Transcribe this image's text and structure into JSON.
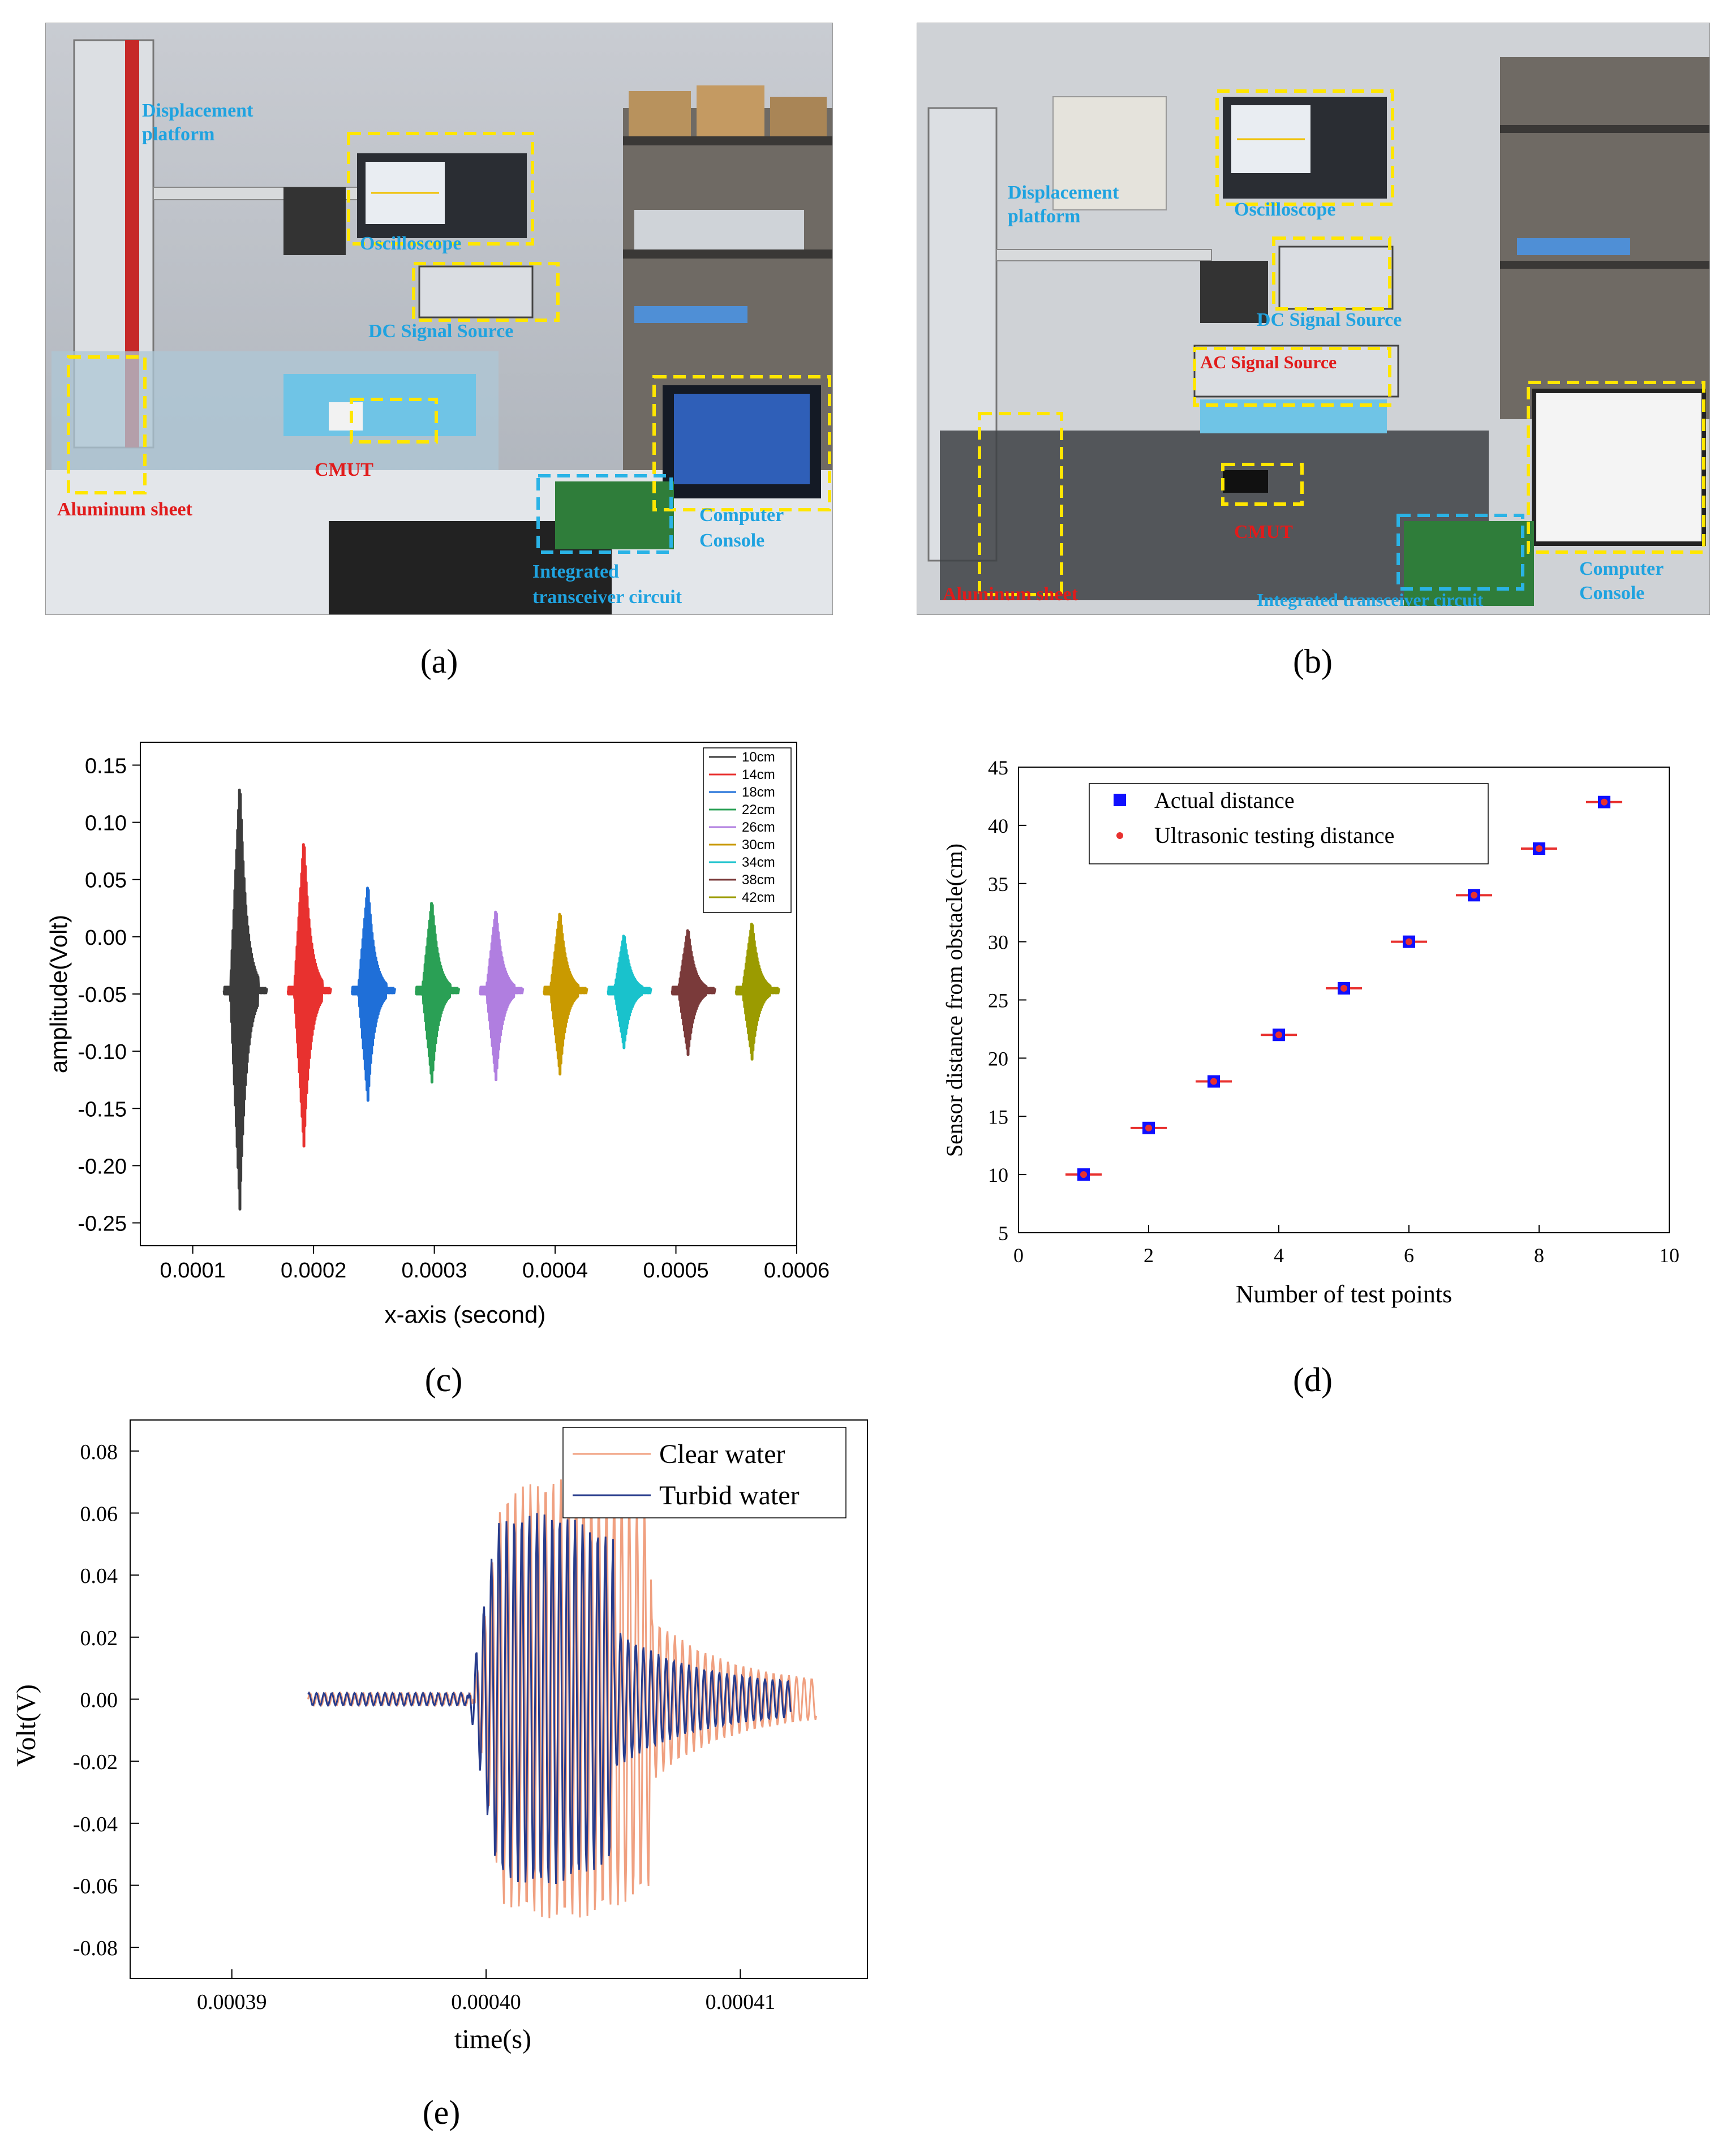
{
  "photo_a": {
    "labels": {
      "displacement": [
        "Displacement",
        "platform"
      ],
      "oscilloscope": "Oscilloscope",
      "dc_source": "DC Signal Source",
      "cmut": "CMUT",
      "aluminum": "Aluminum sheet",
      "computer": [
        "Computer",
        "Console"
      ],
      "transceiver": [
        "Integrated",
        "transceiver circuit"
      ]
    },
    "caption": "(a)"
  },
  "photo_b": {
    "labels": {
      "displacement": [
        "Displacement",
        "platform"
      ],
      "oscilloscope": "Oscilloscope",
      "dc_source": "DC Signal Source",
      "ac_source": "AC Signal Source",
      "cmut": "CMUT",
      "aluminum": "Aluminum sheet",
      "transceiver": "Integrated transceiver circuit",
      "computer": [
        "Computer",
        "Console"
      ]
    },
    "caption": "(b)"
  },
  "colors": {
    "blue_label": "#1fa3e0",
    "red_label": "#e11b1b",
    "yellow_box": "#ffe600",
    "cyan_box": "#2ab3e6",
    "clear_water": "#f0a080",
    "turbid_water": "#283c8c"
  },
  "chart_data": [
    {
      "panel": "c",
      "type": "line",
      "xlabel": "x-axis (second)",
      "ylabel": "amplitude(Volt)",
      "xlim": [
        0.0001,
        0.0006
      ],
      "ylim": [
        -0.27,
        0.17
      ],
      "xticks": [
        "0.0001",
        "0.0002",
        "0.0003",
        "0.0004",
        "0.0005",
        "0.0006"
      ],
      "yticks": [
        "0.15",
        "0.10",
        "0.05",
        "0.00",
        "-0.05",
        "-0.10",
        "-0.15",
        "-0.20",
        "-0.25"
      ],
      "baseline": -0.047,
      "legend_position": "top-right",
      "series": [
        {
          "name": "10cm",
          "center": 0.000137,
          "max": 0.137,
          "min": -0.238,
          "color": "#3c3c3c"
        },
        {
          "name": "14cm",
          "center": 0.00019,
          "max": 0.087,
          "min": -0.183,
          "color": "#e8312f"
        },
        {
          "name": "18cm",
          "center": 0.000243,
          "max": 0.047,
          "min": -0.143,
          "color": "#1f6fd8"
        },
        {
          "name": "22cm",
          "center": 0.000296,
          "max": 0.033,
          "min": -0.127,
          "color": "#2aa055"
        },
        {
          "name": "26cm",
          "center": 0.000349,
          "max": 0.025,
          "min": -0.125,
          "color": "#b07ee0"
        },
        {
          "name": "30cm",
          "center": 0.000402,
          "max": 0.023,
          "min": -0.12,
          "color": "#c99a00"
        },
        {
          "name": "34cm",
          "center": 0.000455,
          "max": 0.003,
          "min": -0.097,
          "color": "#19c2cc"
        },
        {
          "name": "38cm",
          "center": 0.000508,
          "max": 0.008,
          "min": -0.103,
          "color": "#7a3a3a"
        },
        {
          "name": "42cm",
          "center": 0.000561,
          "max": 0.014,
          "min": -0.107,
          "color": "#9b9b00"
        }
      ],
      "caption": "(c)"
    },
    {
      "panel": "d",
      "type": "scatter",
      "xlabel": "Number of test points",
      "ylabel": "Sensor distance from obstacle(cm)",
      "xlim": [
        0,
        10
      ],
      "ylim": [
        5,
        45
      ],
      "xticks": [
        "0",
        "2",
        "4",
        "6",
        "8",
        "10"
      ],
      "yticks": [
        "5",
        "10",
        "15",
        "20",
        "25",
        "30",
        "35",
        "40",
        "45"
      ],
      "legend_position": "top-left",
      "x": [
        1,
        2,
        3,
        4,
        5,
        6,
        7,
        8,
        9
      ],
      "series": [
        {
          "name": "Actual distance",
          "values": [
            10,
            14,
            18,
            22,
            26,
            30,
            34,
            38,
            42
          ],
          "color": "#1010ff",
          "marker": "square"
        },
        {
          "name": "Ultrasonic testing distance",
          "values": [
            10,
            14,
            18,
            22,
            26,
            30,
            34,
            38,
            42
          ],
          "color": "#e8312f",
          "marker": "circle"
        }
      ],
      "caption": "(d)"
    },
    {
      "panel": "e",
      "type": "line",
      "xlabel": "time(s)",
      "ylabel": "Volt(V)",
      "xlim": [
        0.000386,
        0.000415
      ],
      "ylim": [
        -0.09,
        0.09
      ],
      "xticks": [
        "0.00039",
        "0.00040",
        "0.00041"
      ],
      "yticks": [
        "0.08",
        "0.06",
        "0.04",
        "0.02",
        "0.00",
        "-0.02",
        "-0.04",
        "-0.06",
        "-0.08"
      ],
      "legend_position": "top-right",
      "series": [
        {
          "name": "Clear water",
          "color": "#f0a080",
          "start": 0.000393,
          "end": 0.000413,
          "burst_start": 0.0003995,
          "burst_end": 0.0004065,
          "peak": 0.071
        },
        {
          "name": "Turbid water",
          "color": "#283c8c",
          "start": 0.000393,
          "end": 0.000412,
          "burst_start": 0.0003993,
          "burst_end": 0.000405,
          "peak": 0.06
        }
      ],
      "caption": "(e)"
    }
  ]
}
